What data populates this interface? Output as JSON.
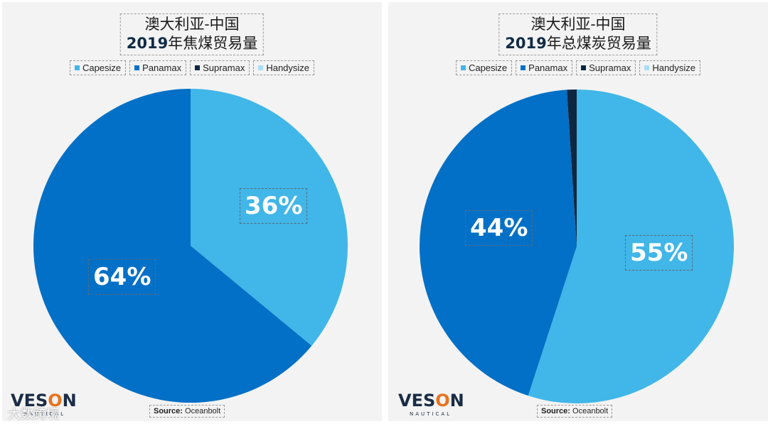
{
  "chart_data": [
    {
      "type": "pie",
      "title_line1": "澳大利亚-中国",
      "title_year": "2019",
      "title_rest": "年焦煤贸易量",
      "legend": [
        "Capesize",
        "Panamax",
        "Supramax",
        "Handysize"
      ],
      "slices": [
        {
          "name": "Capesize",
          "value": 36,
          "label": "36%",
          "color": "#41b6e8"
        },
        {
          "name": "Panamax",
          "value": 64,
          "label": "64%",
          "color": "#0270c6"
        }
      ],
      "legend_colors": [
        "#41b6e8",
        "#0270c6",
        "#0d2740",
        "#a9def7"
      ]
    },
    {
      "type": "pie",
      "title_line1": "澳大利亚-中国",
      "title_year": "2019",
      "title_rest": "年总煤炭贸易量",
      "legend": [
        "Capesize",
        "Panamax",
        "Supramax",
        "Handysize"
      ],
      "slices": [
        {
          "name": "Capesize",
          "value": 55,
          "label": "55%",
          "color": "#41b6e8"
        },
        {
          "name": "Panamax",
          "value": 44,
          "label": "44%",
          "color": "#0270c6"
        },
        {
          "name": "Supramax",
          "value": 1,
          "label": "",
          "color": "#0d2740"
        }
      ],
      "legend_colors": [
        "#41b6e8",
        "#0270c6",
        "#0d2740",
        "#a9def7"
      ]
    }
  ],
  "branding": {
    "logo_pre": "VES",
    "logo_o": "O",
    "logo_post": "N",
    "logo_sub": "NAUTICAL",
    "source_label": "Source:",
    "source_value": "Oceanbolt",
    "watermark": "大数跨境"
  }
}
